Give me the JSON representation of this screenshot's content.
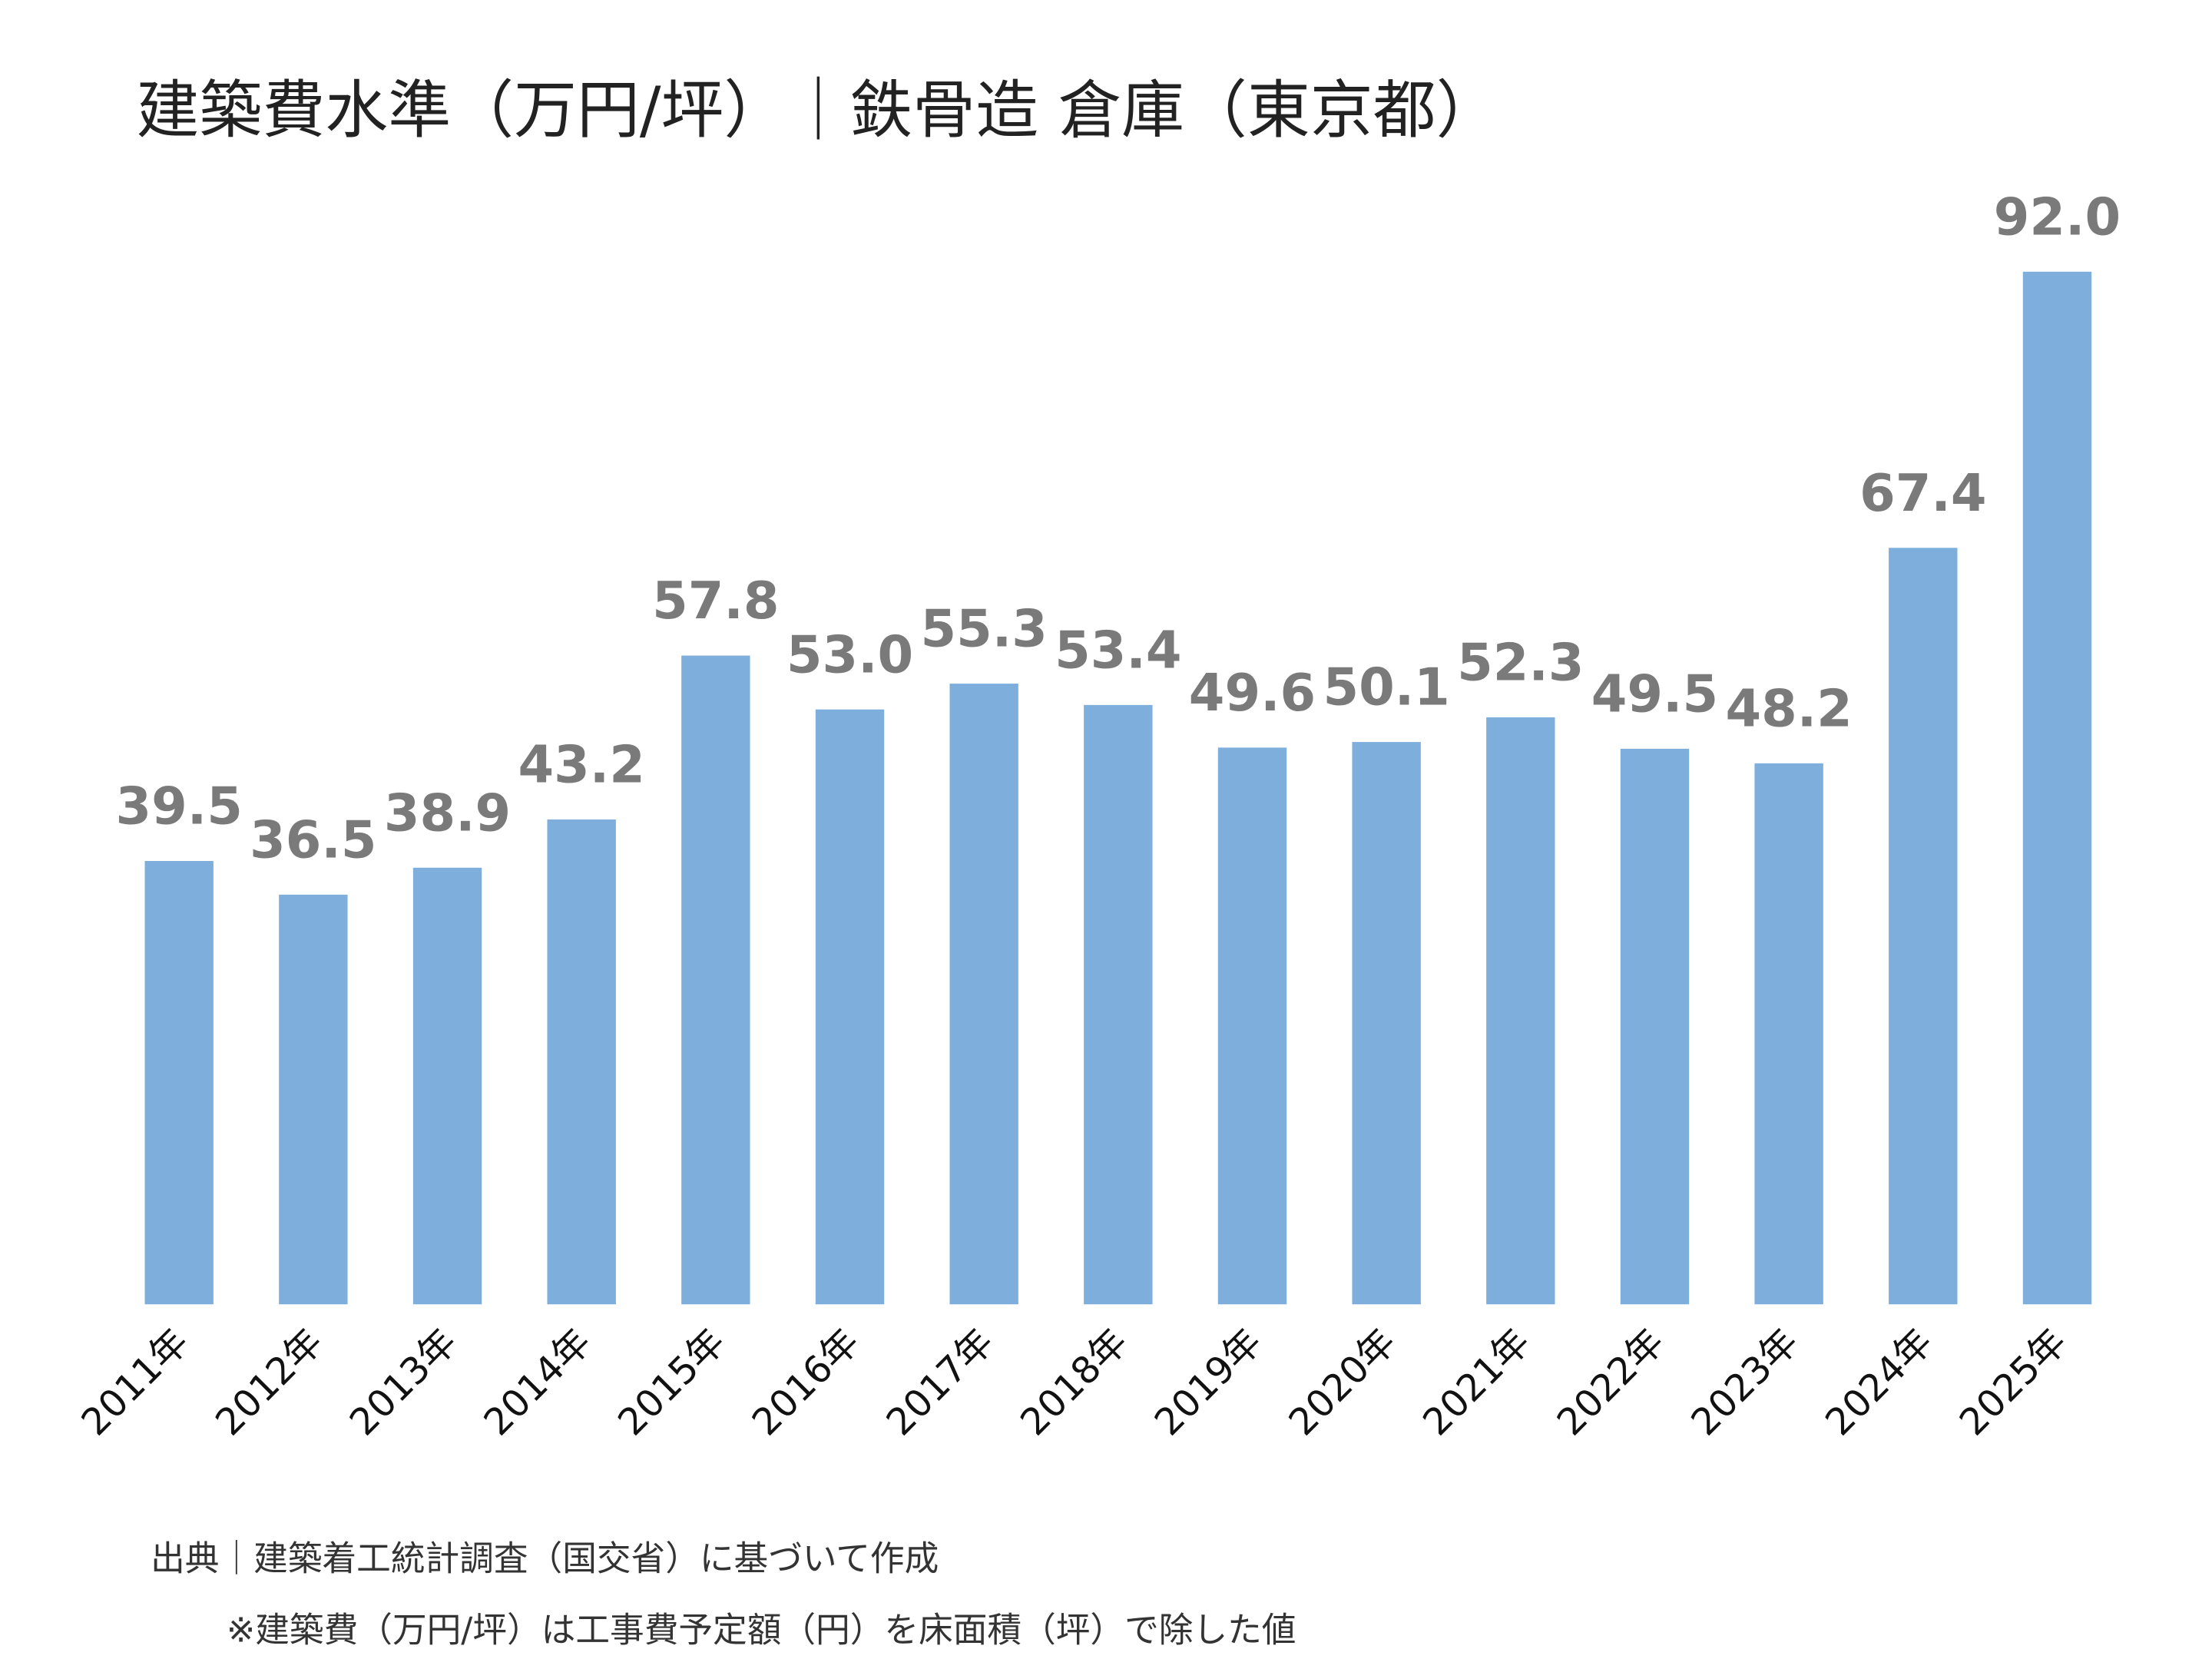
{
  "chart_data": {
    "type": "bar",
    "title": "建築費水準（万円/坪）｜鉄骨造 倉庫（東京都）",
    "categories": [
      "2011年",
      "2012年",
      "2013年",
      "2014年",
      "2015年",
      "2016年",
      "2017年",
      "2018年",
      "2019年",
      "2020年",
      "2021年",
      "2022年",
      "2023年",
      "2024年",
      "2025年"
    ],
    "values": [
      39.5,
      36.5,
      38.9,
      43.2,
      57.8,
      53.0,
      55.3,
      53.4,
      49.6,
      50.1,
      52.3,
      49.5,
      48.2,
      67.4,
      92.0
    ],
    "value_labels": [
      "39.5",
      "36.5",
      "38.9",
      "43.2",
      "57.8",
      "53.0",
      "55.3",
      "53.4",
      "49.6",
      "50.1",
      "52.3",
      "49.5",
      "48.2",
      "67.4",
      "92.0"
    ],
    "color": "#7eaedc",
    "notes": [
      "出典｜建築着工統計調査（国交省）に基づいて作成",
      "※建築費（万円/坪）は工事費予定額（円）を床面積（坪）で除した値"
    ]
  }
}
